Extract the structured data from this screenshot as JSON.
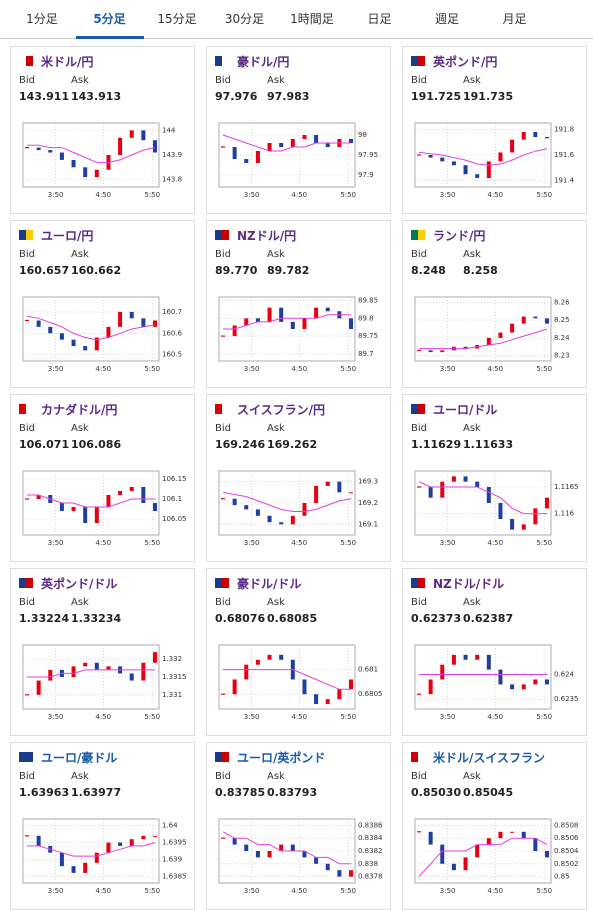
{
  "tabs": [
    {
      "label": "1分足"
    },
    {
      "label": "5分足",
      "active": true
    },
    {
      "label": "15分足"
    },
    {
      "label": "30分足"
    },
    {
      "label": "1時間足"
    },
    {
      "label": "日足"
    },
    {
      "label": "週足"
    },
    {
      "label": "月足"
    }
  ],
  "labels": {
    "bid": "Bid",
    "ask": "Ask"
  },
  "xticks": [
    "3:50",
    "4:50",
    "5:50"
  ],
  "colors": {
    "up": "#e60012",
    "down": "#1f3fa0",
    "ma": "#e040e0"
  },
  "pairs": [
    {
      "name": "米ドル/円",
      "bid": "143.911",
      "ask": "143.913",
      "chart": {
        "type": "candlestick",
        "ylim": [
          143.77,
          144.03
        ],
        "yticks": [
          143.8,
          143.9,
          144
        ],
        "close": [
          143.93,
          143.92,
          143.91,
          143.88,
          143.85,
          143.81,
          143.84,
          143.9,
          143.97,
          144.0,
          143.96,
          143.91
        ],
        "ma": [
          143.94,
          143.94,
          143.93,
          143.93,
          143.91,
          143.89,
          143.87,
          143.87,
          143.88,
          143.9,
          143.92,
          143.93
        ]
      }
    },
    {
      "name": "豪ドル/円",
      "bid": "97.976",
      "ask": "97.983",
      "chart": {
        "type": "candlestick",
        "ylim": [
          97.87,
          98.03
        ],
        "yticks": [
          97.9,
          97.95,
          98
        ],
        "close": [
          97.97,
          97.94,
          97.93,
          97.96,
          97.98,
          97.97,
          97.99,
          98.0,
          97.98,
          97.97,
          97.99,
          97.98
        ],
        "ma": [
          98.0,
          97.99,
          97.98,
          97.97,
          97.96,
          97.96,
          97.97,
          97.97,
          97.98,
          97.98,
          97.98,
          97.98
        ]
      }
    },
    {
      "name": "英ポンド/円",
      "bid": "191.725",
      "ask": "191.735",
      "chart": {
        "type": "candlestick",
        "ylim": [
          191.35,
          191.85
        ],
        "yticks": [
          191.4,
          191.6,
          191.8
        ],
        "close": [
          191.6,
          191.58,
          191.55,
          191.52,
          191.45,
          191.42,
          191.55,
          191.62,
          191.72,
          191.78,
          191.74,
          191.73
        ],
        "ma": [
          191.62,
          191.61,
          191.6,
          191.58,
          191.56,
          191.53,
          191.52,
          191.53,
          191.56,
          191.6,
          191.63,
          191.65
        ]
      }
    },
    {
      "name": "ユーロ/円",
      "bid": "160.657",
      "ask": "160.662",
      "chart": {
        "type": "candlestick",
        "ylim": [
          160.47,
          160.77
        ],
        "yticks": [
          160.5,
          160.6,
          160.7
        ],
        "close": [
          160.66,
          160.63,
          160.6,
          160.57,
          160.54,
          160.52,
          160.58,
          160.63,
          160.7,
          160.67,
          160.63,
          160.66
        ],
        "ma": [
          160.68,
          160.67,
          160.65,
          160.63,
          160.6,
          160.58,
          160.57,
          160.58,
          160.6,
          160.62,
          160.63,
          160.64
        ]
      }
    },
    {
      "name": "NZドル/円",
      "bid": "89.770",
      "ask": "89.782",
      "chart": {
        "type": "candlestick",
        "ylim": [
          89.68,
          89.86
        ],
        "yticks": [
          89.7,
          89.75,
          89.8,
          89.85
        ],
        "close": [
          89.75,
          89.78,
          89.8,
          89.79,
          89.83,
          89.79,
          89.77,
          89.8,
          89.83,
          89.82,
          89.8,
          89.77
        ],
        "ma": [
          89.77,
          89.77,
          89.78,
          89.79,
          89.79,
          89.8,
          89.8,
          89.8,
          89.8,
          89.81,
          89.81,
          89.81
        ]
      }
    },
    {
      "name": "ランド/円",
      "bid": "8.248",
      "ask": "8.258",
      "chart": {
        "type": "candlestick",
        "ylim": [
          8.227,
          8.263
        ],
        "yticks": [
          8.23,
          8.24,
          8.25,
          8.26
        ],
        "close": [
          8.233,
          8.232,
          8.233,
          8.235,
          8.234,
          8.236,
          8.24,
          8.243,
          8.248,
          8.252,
          8.251,
          8.248
        ],
        "ma": [
          8.234,
          8.234,
          8.234,
          8.234,
          8.234,
          8.235,
          8.236,
          8.237,
          8.239,
          8.241,
          8.243,
          8.245
        ]
      }
    },
    {
      "name": "カナダドル/円",
      "bid": "106.071",
      "ask": "106.086",
      "chart": {
        "type": "candlestick",
        "ylim": [
          106.01,
          106.17
        ],
        "yticks": [
          106.05,
          106.1,
          106.15
        ],
        "close": [
          106.1,
          106.11,
          106.09,
          106.07,
          106.08,
          106.04,
          106.08,
          106.11,
          106.12,
          106.13,
          106.09,
          106.07
        ],
        "ma": [
          106.11,
          106.11,
          106.1,
          106.09,
          106.09,
          106.08,
          106.08,
          106.08,
          106.09,
          106.1,
          106.1,
          106.1
        ]
      }
    },
    {
      "name": "スイスフラン/円",
      "bid": "169.246",
      "ask": "169.262",
      "chart": {
        "type": "candlestick",
        "ylim": [
          169.05,
          169.35
        ],
        "yticks": [
          169.1,
          169.2,
          169.3
        ],
        "close": [
          169.22,
          169.19,
          169.17,
          169.14,
          169.11,
          169.1,
          169.14,
          169.2,
          169.28,
          169.3,
          169.25,
          169.25
        ],
        "ma": [
          169.25,
          169.24,
          169.23,
          169.21,
          169.19,
          169.17,
          169.16,
          169.16,
          169.17,
          169.19,
          169.21,
          169.22
        ]
      }
    },
    {
      "name": "ユーロ/ドル",
      "bid": "1.11629",
      "ask": "1.11633",
      "chart": {
        "type": "candlestick",
        "ylim": [
          1.1156,
          1.1168
        ],
        "yticks": [
          1.116,
          1.1165
        ],
        "close": [
          1.1165,
          1.1163,
          1.1166,
          1.1167,
          1.1166,
          1.1165,
          1.1162,
          1.1159,
          1.1157,
          1.1158,
          1.1161,
          1.1163
        ],
        "ma": [
          1.1166,
          1.1165,
          1.1165,
          1.1165,
          1.1165,
          1.1165,
          1.1164,
          1.1163,
          1.1161,
          1.116,
          1.116,
          1.116
        ]
      }
    },
    {
      "name": "英ポンド/ドル",
      "bid": "1.33224",
      "ask": "1.33234",
      "chart": {
        "type": "candlestick",
        "ylim": [
          1.3306,
          1.3324
        ],
        "yticks": [
          1.331,
          1.3315,
          1.332
        ],
        "close": [
          1.331,
          1.3314,
          1.3317,
          1.3315,
          1.3318,
          1.3319,
          1.3317,
          1.3318,
          1.3316,
          1.3314,
          1.3319,
          1.3322
        ],
        "ma": [
          1.3315,
          1.3315,
          1.3315,
          1.3316,
          1.3316,
          1.3317,
          1.3317,
          1.3317,
          1.3317,
          1.3317,
          1.3317,
          1.3317
        ]
      }
    },
    {
      "name": "豪ドル/ドル",
      "bid": "0.68076",
      "ask": "0.68085",
      "chart": {
        "type": "candlestick",
        "ylim": [
          0.6802,
          0.6815
        ],
        "yticks": [
          0.6805,
          0.681
        ],
        "close": [
          0.6805,
          0.6808,
          0.6811,
          0.6812,
          0.6813,
          0.6812,
          0.6808,
          0.6805,
          0.6803,
          0.6804,
          0.6806,
          0.6808
        ],
        "ma": [
          0.681,
          0.681,
          0.681,
          0.681,
          0.681,
          0.681,
          0.681,
          0.6809,
          0.6808,
          0.6807,
          0.6806,
          0.6806
        ]
      }
    },
    {
      "name": "NZドル/ドル",
      "bid": "0.62373",
      "ask": "0.62387",
      "chart": {
        "type": "candlestick",
        "ylim": [
          0.6233,
          0.6246
        ],
        "yticks": [
          0.6235,
          0.624
        ],
        "close": [
          0.6236,
          0.6239,
          0.6242,
          0.6244,
          0.6243,
          0.6244,
          0.6241,
          0.6238,
          0.6237,
          0.6238,
          0.6239,
          0.6238
        ],
        "ma": [
          0.624,
          0.624,
          0.624,
          0.624,
          0.624,
          0.624,
          0.624,
          0.624,
          0.624,
          0.624,
          0.624,
          0.624
        ]
      }
    },
    {
      "name": "ユーロ/豪ドル",
      "bid": "1.63963",
      "ask": "1.63977",
      "chart": {
        "type": "candlestick",
        "ylim": [
          1.6383,
          1.6402
        ],
        "yticks": [
          1.6385,
          1.639,
          1.6395,
          1.64
        ],
        "close": [
          1.6397,
          1.6394,
          1.6392,
          1.6388,
          1.6386,
          1.6389,
          1.6392,
          1.6395,
          1.6394,
          1.6396,
          1.6397,
          1.6397
        ],
        "ma": [
          1.6394,
          1.6394,
          1.6393,
          1.6392,
          1.6391,
          1.6391,
          1.6391,
          1.6392,
          1.6393,
          1.6394,
          1.6394,
          1.6395
        ]
      }
    },
    {
      "name": "ユーロ/英ポンド",
      "bid": "0.83785",
      "ask": "0.83793",
      "chart": {
        "type": "candlestick",
        "ylim": [
          0.8377,
          0.8387
        ],
        "yticks": [
          0.8378,
          0.838,
          0.8382,
          0.8384,
          0.8386
        ],
        "close": [
          0.8384,
          0.8383,
          0.8382,
          0.8381,
          0.8382,
          0.8383,
          0.8382,
          0.8381,
          0.838,
          0.8379,
          0.8378,
          0.8379
        ],
        "ma": [
          0.8385,
          0.8384,
          0.8384,
          0.8383,
          0.8383,
          0.8382,
          0.8382,
          0.8382,
          0.8381,
          0.8381,
          0.838,
          0.838
        ]
      }
    },
    {
      "name": "米ドル/スイスフラン",
      "bid": "0.85030",
      "ask": "0.85045",
      "chart": {
        "type": "candlestick",
        "ylim": [
          0.8499,
          0.8509
        ],
        "yticks": [
          0.85,
          0.8502,
          0.8504,
          0.8506,
          0.8508
        ],
        "close": [
          0.8507,
          0.8505,
          0.8502,
          0.8501,
          0.8503,
          0.8505,
          0.8506,
          0.8507,
          0.8507,
          0.8506,
          0.8504,
          0.8503
        ],
        "ma": [
          0.85,
          0.8502,
          0.8504,
          0.8504,
          0.8504,
          0.8505,
          0.8505,
          0.8505,
          0.8506,
          0.8506,
          0.8506,
          0.8505
        ]
      }
    }
  ]
}
